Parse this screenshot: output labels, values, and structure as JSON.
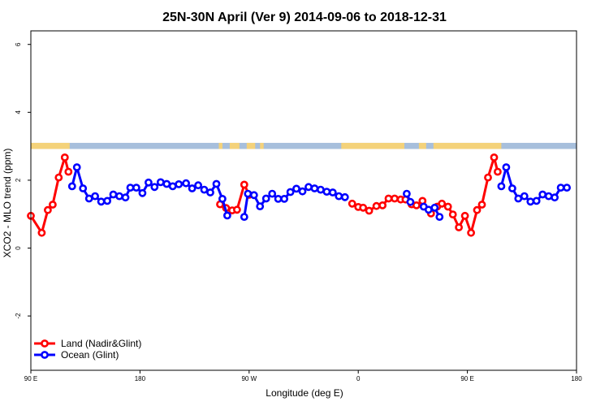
{
  "chart_data": {
    "type": "line",
    "title": "25N-30N April (Ver 9)   2014-09-06 to 2018-12-31",
    "xlabel": "Longitude (deg E)",
    "ylabel": "XCO2 - MLO trend (ppm)",
    "xlim": [
      90,
      540
    ],
    "ylim": [
      -3.6,
      6.4
    ],
    "x_ticks": [
      {
        "value": 90,
        "label": "90 E"
      },
      {
        "value": 180,
        "label": "180"
      },
      {
        "value": 270,
        "label": "90 W"
      },
      {
        "value": 360,
        "label": "0"
      },
      {
        "value": 450,
        "label": "90 E"
      },
      {
        "value": 540,
        "label": "180"
      }
    ],
    "y_ticks": [
      {
        "value": -2,
        "label": "-2"
      },
      {
        "value": 0,
        "label": "0"
      },
      {
        "value": 2,
        "label": "2"
      },
      {
        "value": 4,
        "label": "4"
      },
      {
        "value": 6,
        "label": "6"
      }
    ],
    "land_ocean_band": {
      "y_range": [
        2.92,
        3.1
      ],
      "land_color": "#f4d27a",
      "ocean_color": "#a7bfdc",
      "land_ranges": [
        [
          90,
          122
        ],
        [
          245,
          248
        ],
        [
          254,
          262
        ],
        [
          268,
          275
        ],
        [
          279,
          282
        ],
        [
          346,
          398
        ],
        [
          410,
          416
        ],
        [
          422,
          478
        ]
      ]
    },
    "legend": {
      "position": "bottom-left",
      "entries": [
        {
          "label": "Land (Nadir&Glint)",
          "color": "#ff0000"
        },
        {
          "label": "Ocean (Glint)",
          "color": "#0000ff"
        }
      ]
    },
    "series": [
      {
        "name": "Land (Nadir&Glint)",
        "color": "#ff0000",
        "segments": [
          [
            [
              90,
              0.95
            ],
            [
              99,
              0.45
            ],
            [
              104,
              1.12
            ],
            [
              108,
              1.28
            ],
            [
              113,
              2.08
            ],
            [
              118,
              2.67
            ],
            [
              121,
              2.25
            ]
          ],
          [
            [
              246,
              1.29
            ],
            [
              251,
              1.18
            ],
            [
              256,
              1.11
            ],
            [
              260,
              1.13
            ],
            [
              266,
              1.87
            ],
            [
              270,
              1.57
            ]
          ],
          [
            [
              355,
              1.31
            ],
            [
              360,
              1.21
            ],
            [
              364,
              1.19
            ],
            [
              369,
              1.1
            ],
            [
              375,
              1.24
            ],
            [
              380,
              1.26
            ],
            [
              385,
              1.46
            ],
            [
              390,
              1.46
            ],
            [
              395,
              1.43
            ],
            [
              399,
              1.43
            ]
          ],
          [
            [
              404,
              1.29
            ],
            [
              408,
              1.26
            ],
            [
              413,
              1.39
            ]
          ],
          [
            [
              420,
              1.02
            ],
            [
              425,
              1.22
            ],
            [
              429,
              1.31
            ],
            [
              434,
              1.22
            ],
            [
              438,
              0.99
            ],
            [
              443,
              0.61
            ],
            [
              448,
              0.95
            ],
            [
              453,
              0.45
            ],
            [
              458,
              1.12
            ],
            [
              462,
              1.28
            ],
            [
              467,
              2.08
            ],
            [
              472,
              2.67
            ],
            [
              475,
              2.25
            ]
          ]
        ]
      },
      {
        "name": "Ocean (Glint)",
        "color": "#0000ff",
        "segments": [
          [
            [
              124,
              1.82
            ],
            [
              128,
              2.38
            ],
            [
              133,
              1.76
            ],
            [
              138,
              1.46
            ],
            [
              143,
              1.53
            ],
            [
              148,
              1.37
            ],
            [
              153,
              1.39
            ],
            [
              158,
              1.58
            ],
            [
              163,
              1.53
            ],
            [
              168,
              1.49
            ],
            [
              172,
              1.78
            ],
            [
              177,
              1.78
            ],
            [
              182,
              1.62
            ],
            [
              187,
              1.93
            ],
            [
              192,
              1.8
            ],
            [
              197,
              1.94
            ],
            [
              202,
              1.89
            ],
            [
              207,
              1.82
            ],
            [
              212,
              1.88
            ],
            [
              218,
              1.91
            ],
            [
              223,
              1.76
            ],
            [
              228,
              1.85
            ],
            [
              233,
              1.72
            ],
            [
              238,
              1.64
            ],
            [
              243,
              1.89
            ],
            [
              248,
              1.45
            ],
            [
              252,
              0.96
            ]
          ],
          [
            [
              266,
              0.92
            ],
            [
              269,
              1.6
            ],
            [
              274,
              1.56
            ],
            [
              279,
              1.23
            ],
            [
              284,
              1.46
            ],
            [
              289,
              1.6
            ],
            [
              294,
              1.45
            ],
            [
              299,
              1.45
            ],
            [
              304,
              1.65
            ],
            [
              309,
              1.75
            ],
            [
              314,
              1.67
            ],
            [
              319,
              1.8
            ],
            [
              324,
              1.76
            ],
            [
              329,
              1.72
            ],
            [
              334,
              1.66
            ],
            [
              339,
              1.64
            ],
            [
              344,
              1.53
            ],
            [
              349,
              1.5
            ]
          ],
          [
            [
              400,
              1.6
            ],
            [
              403,
              1.36
            ]
          ],
          [
            [
              414,
              1.22
            ],
            [
              418,
              1.13
            ],
            [
              423,
              1.19
            ],
            [
              427,
              0.92
            ]
          ],
          [
            [
              478,
              1.82
            ],
            [
              482,
              2.38
            ],
            [
              487,
              1.76
            ],
            [
              492,
              1.46
            ],
            [
              497,
              1.53
            ],
            [
              502,
              1.37
            ],
            [
              507,
              1.39
            ],
            [
              512,
              1.58
            ],
            [
              517,
              1.53
            ],
            [
              522,
              1.49
            ],
            [
              527,
              1.78
            ],
            [
              532,
              1.78
            ]
          ]
        ]
      }
    ]
  }
}
